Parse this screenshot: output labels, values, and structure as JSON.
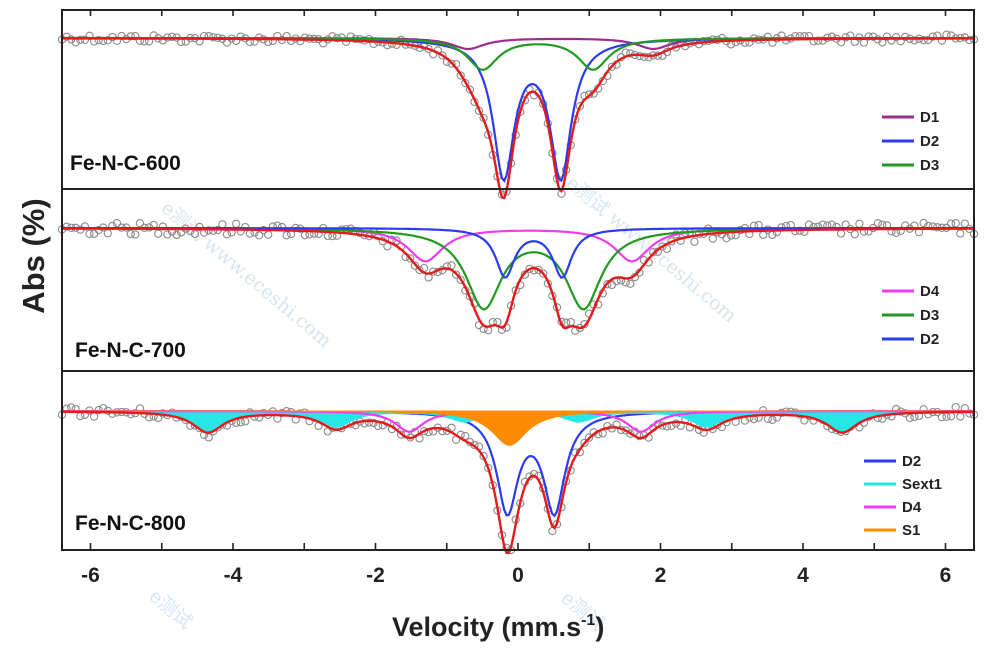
{
  "chart_data": {
    "type": "scatter",
    "ylabel": "Abs (%)",
    "xlabel_main": "Velocity (mm.s",
    "xlabel_sup": "-1",
    "xlabel_end": ")",
    "xlim": [
      -6.4,
      6.4
    ],
    "xticks": [
      -6,
      -4,
      -2,
      0,
      2,
      4,
      6
    ],
    "legend_placement": "bottom-right of each panel",
    "colors": {
      "points": "#8a8a8a",
      "fit": "#e41a1c",
      "D1": "#9b2d8e",
      "D2": "#2b3bf0",
      "D3": "#219a21",
      "D4": "#f03cf0",
      "Sext1": "#27e6e6",
      "S1": "#ff8c00"
    },
    "panels": [
      {
        "label": "Fe-N-C-600",
        "legend": [
          "D1",
          "D2",
          "D3"
        ],
        "components": [
          {
            "name": "D1",
            "type": "doublet",
            "iso": 0.6,
            "qs": 2.6,
            "width": 0.28,
            "depth": 0.07
          },
          {
            "name": "D2",
            "type": "doublet",
            "iso": 0.2,
            "qs": 0.8,
            "width": 0.18,
            "depth": 0.88
          },
          {
            "name": "D3",
            "type": "doublet",
            "iso": 0.28,
            "qs": 1.55,
            "width": 0.26,
            "depth": 0.2
          }
        ]
      },
      {
        "label": "Fe-N-C-700",
        "legend": [
          "D4",
          "D3",
          "D2"
        ],
        "components": [
          {
            "name": "D4",
            "type": "doublet",
            "iso": 0.15,
            "qs": 2.9,
            "width": 0.3,
            "depth": 0.22
          },
          {
            "name": "D3",
            "type": "doublet",
            "iso": 0.22,
            "qs": 1.4,
            "width": 0.3,
            "depth": 0.52
          },
          {
            "name": "D2",
            "type": "doublet",
            "iso": 0.22,
            "qs": 0.8,
            "width": 0.16,
            "depth": 0.32
          }
        ]
      },
      {
        "label": "Fe-N-C-800",
        "legend": [
          "D2",
          "Sext1",
          "D4",
          "S1"
        ],
        "components": [
          {
            "name": "D2",
            "type": "doublet",
            "iso": 0.18,
            "qs": 0.66,
            "width": 0.18,
            "depth": 0.57
          },
          {
            "name": "Sext1",
            "type": "sextet",
            "lines": [
              -4.35,
              -2.55,
              -0.75,
              0.85,
              2.65,
              4.55
            ],
            "rel": [
              1,
              0.75,
              0.5,
              0.5,
              0.75,
              1
            ],
            "width": 0.26,
            "depth": 0.12
          },
          {
            "name": "D4",
            "type": "doublet",
            "iso": 0.1,
            "qs": 3.25,
            "width": 0.24,
            "depth": 0.12
          },
          {
            "name": "S1",
            "type": "singlet",
            "iso": -0.12,
            "width": 0.3,
            "depth": 0.2
          }
        ]
      }
    ]
  },
  "watermark": {
    "texts": [
      "e测试 www.eceshi.com",
      "e测试 www.eceshi.com",
      "e测试"
    ]
  }
}
